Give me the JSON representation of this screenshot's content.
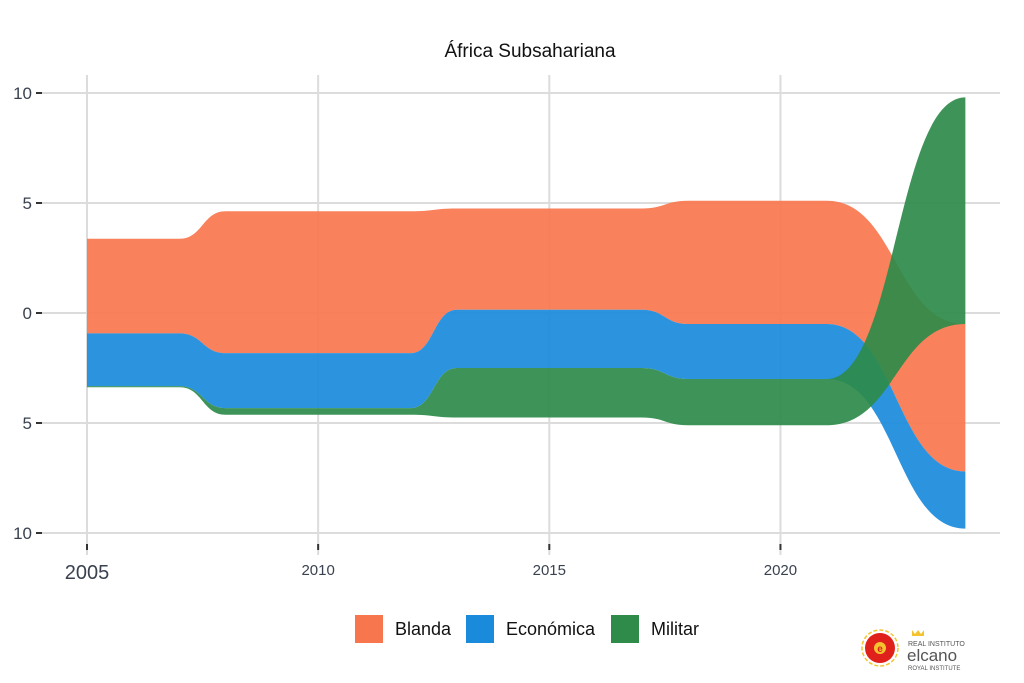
{
  "chart_data": {
    "type": "area",
    "subtype": "streamgraph",
    "title": "África Subsahariana",
    "xlabel": "",
    "ylabel": "",
    "xlim": [
      2005,
      2024
    ],
    "ylim": [
      -10,
      10
    ],
    "x_ticks": [
      2005,
      2010,
      2015,
      2020
    ],
    "y_ticks": [
      {
        "value": 10,
        "label": "10"
      },
      {
        "value": 5,
        "label": "5"
      },
      {
        "value": 0,
        "label": "0"
      },
      {
        "value": -5,
        "label": "5"
      },
      {
        "value": -10,
        "label": "10"
      }
    ],
    "grid": true,
    "legend_position": "bottom",
    "x": [
      2005,
      2006,
      2007,
      2008,
      2009,
      2010,
      2011,
      2012,
      2013,
      2014,
      2015,
      2016,
      2017,
      2018,
      2019,
      2020,
      2021,
      2024
    ],
    "series": [
      {
        "name": "Blanda",
        "color": "#F8764E",
        "values": [
          4.3,
          4.3,
          4.3,
          6.45,
          6.45,
          6.45,
          6.45,
          6.45,
          4.6,
          4.6,
          4.6,
          4.6,
          4.6,
          5.6,
          5.6,
          5.6,
          5.6,
          6.7
        ]
      },
      {
        "name": "Económica",
        "color": "#1A8ADB",
        "values": [
          2.4,
          2.4,
          2.4,
          2.5,
          2.5,
          2.5,
          2.5,
          2.5,
          2.65,
          2.65,
          2.65,
          2.65,
          2.65,
          2.5,
          2.5,
          2.5,
          2.5,
          2.6
        ]
      },
      {
        "name": "Militar",
        "color": "#2E8B4A",
        "values": [
          0.05,
          0.05,
          0.05,
          0.3,
          0.3,
          0.3,
          0.3,
          0.3,
          2.25,
          2.25,
          2.25,
          2.25,
          2.25,
          2.1,
          2.1,
          2.1,
          2.1,
          10.3
        ]
      }
    ]
  },
  "logo": {
    "line1": "REAL INSTITUTO",
    "line2": "elcano",
    "line3": "ROYAL INSTITUTE"
  }
}
